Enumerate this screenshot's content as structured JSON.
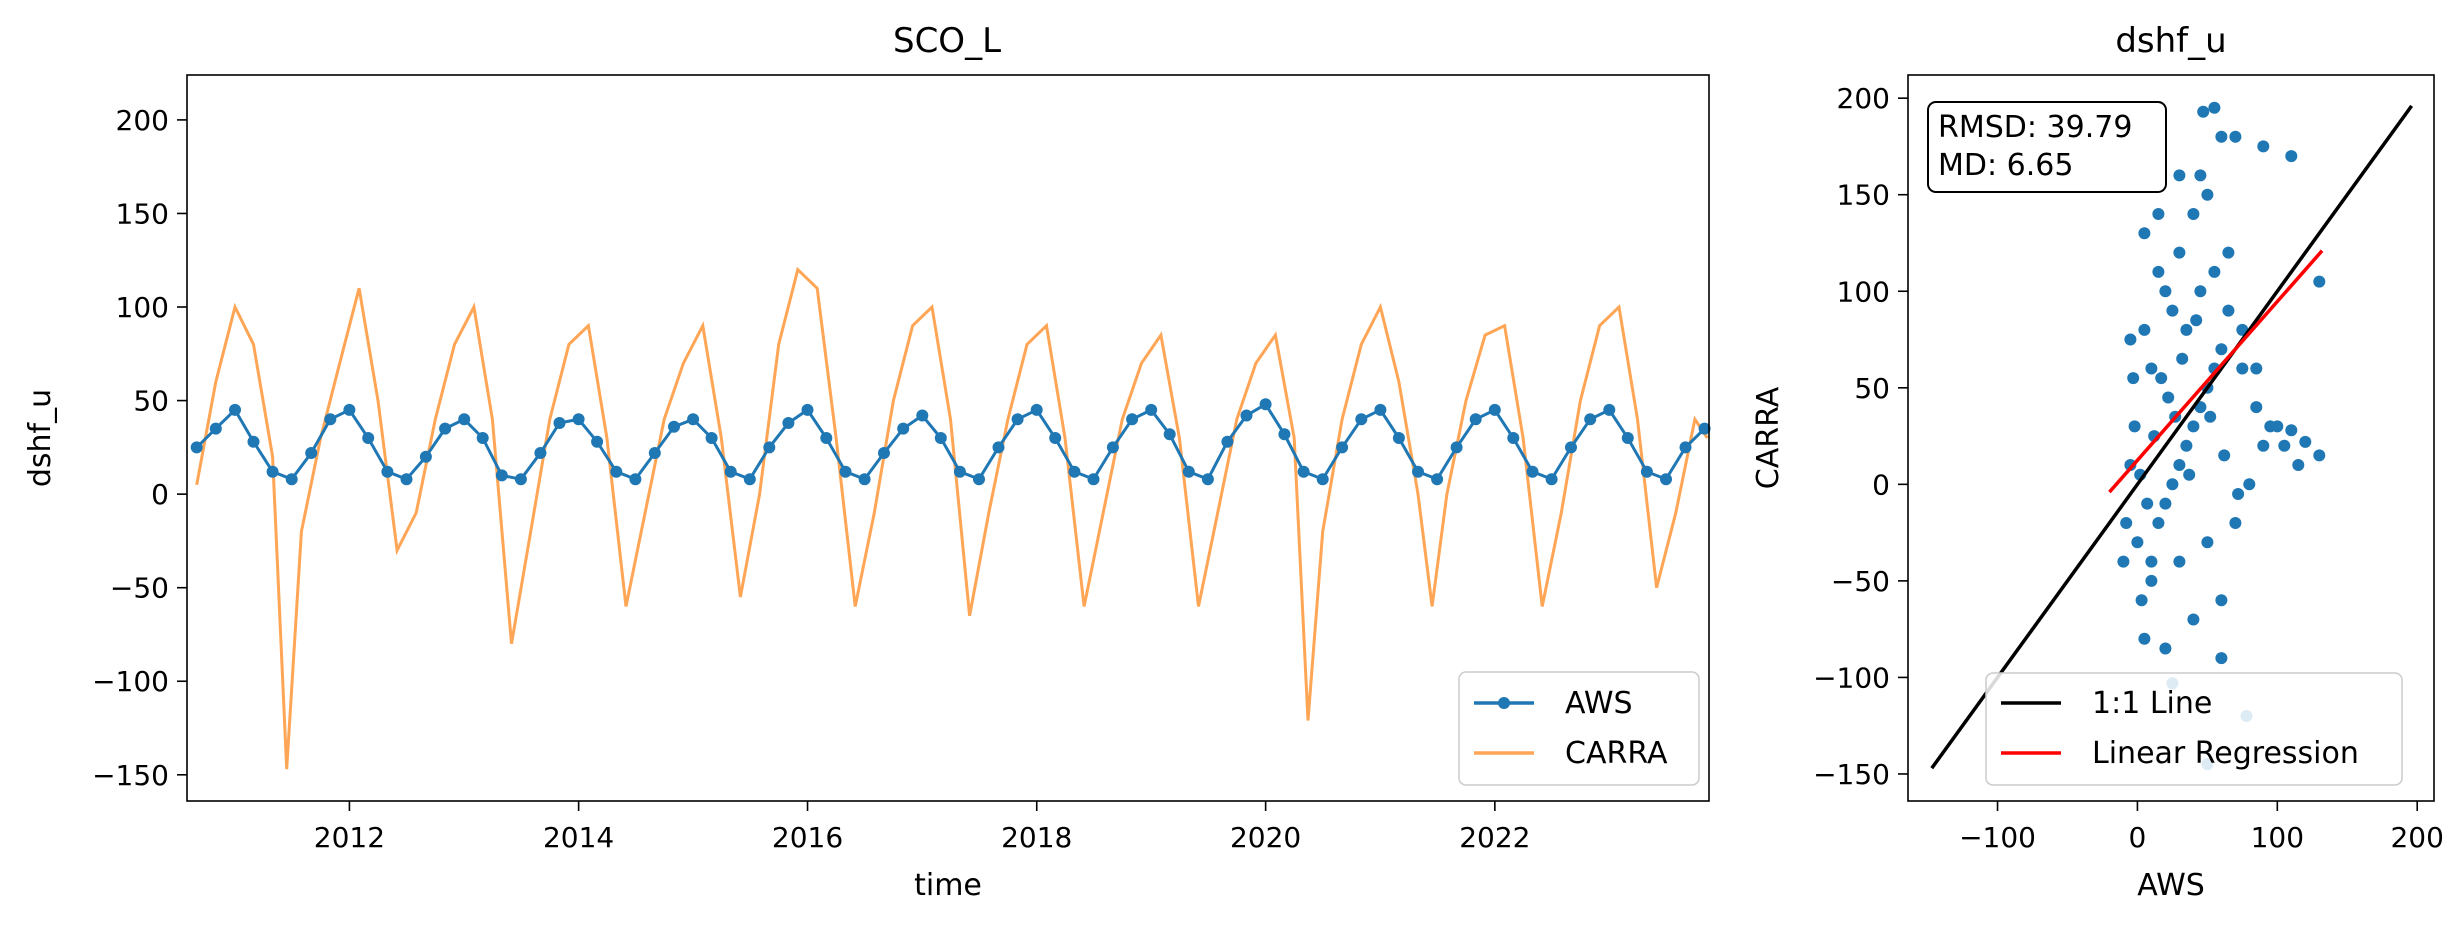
{
  "chart_data": [
    {
      "type": "line",
      "title": "SCO_L",
      "xlabel": "time",
      "ylabel": "dshf_u",
      "xlim": [
        "2010-08-01",
        "2023-11-15"
      ],
      "ylim": [
        -164,
        224
      ],
      "x_ticks": [
        "2012-01-01",
        "2014-01-01",
        "2016-01-01",
        "2018-01-01",
        "2020-01-01",
        "2022-01-01"
      ],
      "x_tick_labels": [
        "2012",
        "2014",
        "2016",
        "2018",
        "2020",
        "2022"
      ],
      "y_ticks": [
        -150,
        -100,
        -50,
        0,
        50,
        100,
        150,
        200
      ],
      "y_tick_labels": [
        "−150",
        "−100",
        "−50",
        "0",
        "50",
        "100",
        "150",
        "200"
      ],
      "legend_position": "lower-right",
      "series": [
        {
          "name": "AWS",
          "color": "#1f77b4",
          "marker": "circle",
          "points": [
            [
              "2010-09-01",
              25
            ],
            [
              "2010-11-01",
              35
            ],
            [
              "2011-01-01",
              45
            ],
            [
              "2011-03-01",
              28
            ],
            [
              "2011-05-01",
              12
            ],
            [
              "2011-07-01",
              8
            ],
            [
              "2011-09-01",
              22
            ],
            [
              "2011-11-01",
              40
            ],
            [
              "2012-01-01",
              45
            ],
            [
              "2012-03-01",
              30
            ],
            [
              "2012-05-01",
              12
            ],
            [
              "2012-07-01",
              8
            ],
            [
              "2012-09-01",
              20
            ],
            [
              "2012-11-01",
              35
            ],
            [
              "2013-01-01",
              40
            ],
            [
              "2013-03-01",
              30
            ],
            [
              "2013-05-01",
              10
            ],
            [
              "2013-07-01",
              8
            ],
            [
              "2013-09-01",
              22
            ],
            [
              "2013-11-01",
              38
            ],
            [
              "2014-01-01",
              40
            ],
            [
              "2014-03-01",
              28
            ],
            [
              "2014-05-01",
              12
            ],
            [
              "2014-07-01",
              8
            ],
            [
              "2014-09-01",
              22
            ],
            [
              "2014-11-01",
              36
            ],
            [
              "2015-01-01",
              40
            ],
            [
              "2015-03-01",
              30
            ],
            [
              "2015-05-01",
              12
            ],
            [
              "2015-07-01",
              8
            ],
            [
              "2015-09-01",
              25
            ],
            [
              "2015-11-01",
              38
            ],
            [
              "2016-01-01",
              45
            ],
            [
              "2016-03-01",
              30
            ],
            [
              "2016-05-01",
              12
            ],
            [
              "2016-07-01",
              8
            ],
            [
              "2016-09-01",
              22
            ],
            [
              "2016-11-01",
              35
            ],
            [
              "2017-01-01",
              42
            ],
            [
              "2017-03-01",
              30
            ],
            [
              "2017-05-01",
              12
            ],
            [
              "2017-07-01",
              8
            ],
            [
              "2017-09-01",
              25
            ],
            [
              "2017-11-01",
              40
            ],
            [
              "2018-01-01",
              45
            ],
            [
              "2018-03-01",
              30
            ],
            [
              "2018-05-01",
              12
            ],
            [
              "2018-07-01",
              8
            ],
            [
              "2018-09-01",
              25
            ],
            [
              "2018-11-01",
              40
            ],
            [
              "2019-01-01",
              45
            ],
            [
              "2019-03-01",
              32
            ],
            [
              "2019-05-01",
              12
            ],
            [
              "2019-07-01",
              8
            ],
            [
              "2019-09-01",
              28
            ],
            [
              "2019-11-01",
              42
            ],
            [
              "2020-01-01",
              48
            ],
            [
              "2020-03-01",
              32
            ],
            [
              "2020-05-01",
              12
            ],
            [
              "2020-07-01",
              8
            ],
            [
              "2020-09-01",
              25
            ],
            [
              "2020-11-01",
              40
            ],
            [
              "2021-01-01",
              45
            ],
            [
              "2021-03-01",
              30
            ],
            [
              "2021-05-01",
              12
            ],
            [
              "2021-07-01",
              8
            ],
            [
              "2021-09-01",
              25
            ],
            [
              "2021-11-01",
              40
            ],
            [
              "2022-01-01",
              45
            ],
            [
              "2022-03-01",
              30
            ],
            [
              "2022-05-01",
              12
            ],
            [
              "2022-07-01",
              8
            ],
            [
              "2022-09-01",
              25
            ],
            [
              "2022-11-01",
              40
            ],
            [
              "2023-01-01",
              45
            ],
            [
              "2023-03-01",
              30
            ],
            [
              "2023-05-01",
              12
            ],
            [
              "2023-07-01",
              8
            ],
            [
              "2023-09-01",
              25
            ],
            [
              "2023-11-01",
              35
            ]
          ]
        },
        {
          "name": "CARRA",
          "color": "#ff7f0e",
          "points": [
            [
              "2010-09-01",
              5
            ],
            [
              "2010-11-01",
              60
            ],
            [
              "2011-01-01",
              100
            ],
            [
              "2011-03-01",
              80
            ],
            [
              "2011-05-01",
              20
            ],
            [
              "2011-06-15",
              -147
            ],
            [
              "2011-08-01",
              -20
            ],
            [
              "2011-10-01",
              30
            ],
            [
              "2011-12-01",
              70
            ],
            [
              "2012-02-01",
              110
            ],
            [
              "2012-04-01",
              50
            ],
            [
              "2012-06-01",
              -30
            ],
            [
              "2012-08-01",
              -10
            ],
            [
              "2012-10-01",
              40
            ],
            [
              "2012-12-01",
              80
            ],
            [
              "2013-02-01",
              100
            ],
            [
              "2013-04-01",
              40
            ],
            [
              "2013-06-01",
              -80
            ],
            [
              "2013-08-01",
              -20
            ],
            [
              "2013-10-01",
              40
            ],
            [
              "2013-12-01",
              80
            ],
            [
              "2014-02-01",
              90
            ],
            [
              "2014-04-01",
              30
            ],
            [
              "2014-06-01",
              -60
            ],
            [
              "2014-08-01",
              -10
            ],
            [
              "2014-10-01",
              40
            ],
            [
              "2014-12-01",
              70
            ],
            [
              "2015-02-01",
              90
            ],
            [
              "2015-04-01",
              30
            ],
            [
              "2015-06-01",
              -55
            ],
            [
              "2015-08-01",
              0
            ],
            [
              "2015-10-01",
              80
            ],
            [
              "2015-12-01",
              120
            ],
            [
              "2016-02-01",
              110
            ],
            [
              "2016-04-01",
              30
            ],
            [
              "2016-06-01",
              -60
            ],
            [
              "2016-08-01",
              -10
            ],
            [
              "2016-10-01",
              50
            ],
            [
              "2016-12-01",
              90
            ],
            [
              "2017-02-01",
              100
            ],
            [
              "2017-04-01",
              40
            ],
            [
              "2017-06-01",
              -65
            ],
            [
              "2017-08-01",
              -10
            ],
            [
              "2017-10-01",
              40
            ],
            [
              "2017-12-01",
              80
            ],
            [
              "2018-02-01",
              90
            ],
            [
              "2018-04-01",
              30
            ],
            [
              "2018-06-01",
              -60
            ],
            [
              "2018-08-01",
              -10
            ],
            [
              "2018-10-01",
              40
            ],
            [
              "2018-12-01",
              70
            ],
            [
              "2019-02-01",
              85
            ],
            [
              "2019-04-01",
              30
            ],
            [
              "2019-06-01",
              -60
            ],
            [
              "2019-08-01",
              -10
            ],
            [
              "2019-10-01",
              40
            ],
            [
              "2019-12-01",
              70
            ],
            [
              "2020-02-01",
              85
            ],
            [
              "2020-04-01",
              30
            ],
            [
              "2020-05-15",
              -121
            ],
            [
              "2020-07-01",
              -20
            ],
            [
              "2020-09-01",
              40
            ],
            [
              "2020-11-01",
              80
            ],
            [
              "2021-01-01",
              100
            ],
            [
              "2021-03-01",
              60
            ],
            [
              "2021-05-01",
              0
            ],
            [
              "2021-06-15",
              -60
            ],
            [
              "2021-08-01",
              0
            ],
            [
              "2021-10-01",
              50
            ],
            [
              "2021-12-01",
              85
            ],
            [
              "2022-02-01",
              90
            ],
            [
              "2022-04-01",
              30
            ],
            [
              "2022-06-01",
              -60
            ],
            [
              "2022-08-01",
              -10
            ],
            [
              "2022-10-01",
              50
            ],
            [
              "2022-12-01",
              90
            ],
            [
              "2023-02-01",
              100
            ],
            [
              "2023-04-01",
              40
            ],
            [
              "2023-06-01",
              -50
            ],
            [
              "2023-08-01",
              -10
            ],
            [
              "2023-10-01",
              40
            ],
            [
              "2023-11-10",
              30
            ]
          ]
        }
      ]
    },
    {
      "type": "scatter",
      "title": "dshf_u",
      "xlabel": "AWS",
      "ylabel": "CARRA",
      "xlim": [
        -164,
        212
      ],
      "ylim": [
        -164,
        212
      ],
      "x_ticks": [
        -100,
        0,
        100,
        200
      ],
      "x_tick_labels": [
        "−100",
        "0",
        "100",
        "200"
      ],
      "y_ticks": [
        -150,
        -100,
        -50,
        0,
        50,
        100,
        150,
        200
      ],
      "y_tick_labels": [
        "−150",
        "−100",
        "−50",
        "0",
        "50",
        "100",
        "150",
        "200"
      ],
      "annotation": [
        "RMSD: 39.79",
        "MD: 6.65"
      ],
      "legend_position": "lower-right",
      "points_color": "#1f77b4",
      "points": [
        [
          3,
          -60
        ],
        [
          10,
          -40
        ],
        [
          15,
          -20
        ],
        [
          20,
          -10
        ],
        [
          25,
          0
        ],
        [
          30,
          10
        ],
        [
          35,
          20
        ],
        [
          40,
          30
        ],
        [
          45,
          40
        ],
        [
          50,
          50
        ],
        [
          55,
          60
        ],
        [
          60,
          70
        ],
        [
          20,
          100
        ],
        [
          30,
          120
        ],
        [
          40,
          140
        ],
        [
          50,
          150
        ],
        [
          60,
          180
        ],
        [
          47,
          193
        ],
        [
          55,
          195
        ],
        [
          70,
          180
        ],
        [
          90,
          175
        ],
        [
          110,
          170
        ],
        [
          5,
          80
        ],
        [
          10,
          60
        ],
        [
          15,
          110
        ],
        [
          25,
          90
        ],
        [
          35,
          80
        ],
        [
          45,
          100
        ],
        [
          55,
          110
        ],
        [
          65,
          90
        ],
        [
          75,
          60
        ],
        [
          85,
          40
        ],
        [
          95,
          30
        ],
        [
          105,
          20
        ],
        [
          115,
          10
        ],
        [
          120,
          22
        ],
        [
          130,
          15
        ],
        [
          130,
          105
        ],
        [
          0,
          -30
        ],
        [
          -2,
          30
        ],
        [
          -5,
          10
        ],
        [
          -8,
          -20
        ],
        [
          -10,
          -40
        ],
        [
          5,
          -80
        ],
        [
          20,
          -85
        ],
        [
          40,
          -70
        ],
        [
          60,
          -60
        ],
        [
          60,
          -90
        ],
        [
          78,
          -120
        ],
        [
          50,
          -145
        ],
        [
          25,
          -103
        ],
        [
          10,
          -50
        ],
        [
          30,
          -40
        ],
        [
          50,
          -30
        ],
        [
          70,
          -20
        ],
        [
          80,
          0
        ],
        [
          90,
          20
        ],
        [
          100,
          30
        ],
        [
          110,
          28
        ],
        [
          85,
          60
        ],
        [
          75,
          80
        ],
        [
          65,
          120
        ],
        [
          45,
          160
        ],
        [
          30,
          160
        ],
        [
          15,
          140
        ],
        [
          5,
          130
        ],
        [
          -3,
          55
        ],
        [
          -5,
          75
        ],
        [
          2,
          5
        ],
        [
          12,
          25
        ],
        [
          22,
          45
        ],
        [
          32,
          65
        ],
        [
          42,
          85
        ],
        [
          52,
          35
        ],
        [
          62,
          15
        ],
        [
          72,
          -5
        ],
        [
          37,
          5
        ],
        [
          27,
          35
        ],
        [
          17,
          55
        ],
        [
          7,
          -10
        ]
      ],
      "lines": [
        {
          "name": "1:1 Line",
          "color": "#000000",
          "points": [
            [
              -147,
              -147
            ],
            [
              196,
              196
            ]
          ]
        },
        {
          "name": "Linear Regression",
          "color": "#ff0000",
          "points": [
            [
              -20,
              -4
            ],
            [
              132,
              121
            ]
          ]
        }
      ]
    }
  ]
}
